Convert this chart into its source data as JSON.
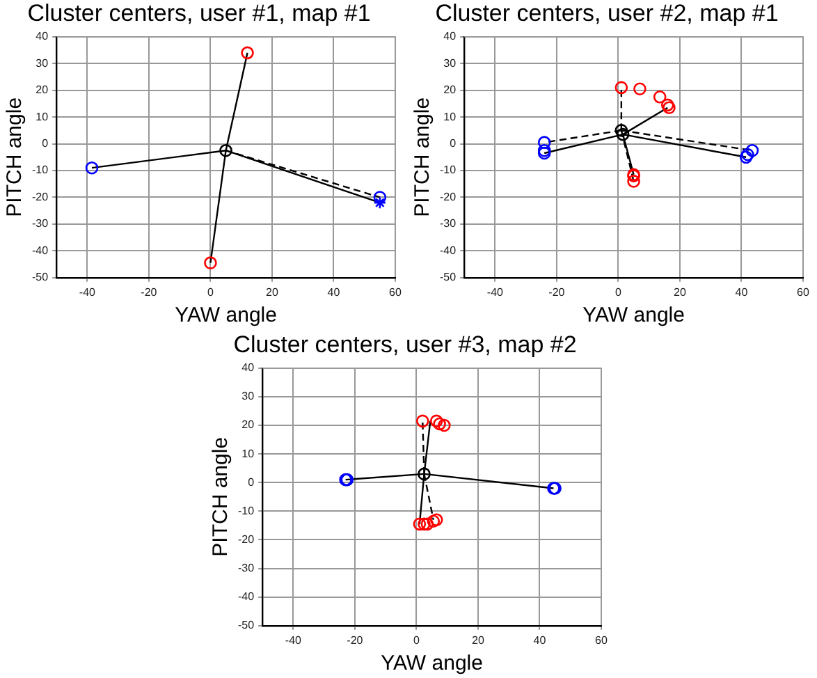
{
  "chart_data": [
    {
      "type": "scatter",
      "title": "Cluster centers, user #1, map #1",
      "xlabel": "YAW angle",
      "ylabel": "PITCH angle",
      "xlim": [
        -50,
        60
      ],
      "ylim": [
        -50,
        40
      ],
      "xticks": [
        -40,
        -20,
        0,
        20,
        40,
        60
      ],
      "yticks": [
        -50,
        -40,
        -30,
        -20,
        -10,
        0,
        10,
        20,
        30,
        40
      ],
      "grid": true,
      "legend": false,
      "series": [
        {
          "type": "scatter",
          "marker": "circle",
          "color": "#ff0000",
          "x": [
            12,
            0
          ],
          "values": [
            34,
            -44.5
          ]
        },
        {
          "type": "scatter",
          "marker": "circle",
          "color": "#0000ff",
          "x": [
            -38.5,
            55
          ],
          "values": [
            -9,
            -20
          ]
        },
        {
          "type": "scatter",
          "marker": "cross",
          "color": "#0000ff",
          "x": [
            55
          ],
          "values": [
            -22
          ]
        },
        {
          "type": "scatter",
          "marker": "circle",
          "color": "#000000",
          "x": [
            5
          ],
          "values": [
            -2.5
          ]
        },
        {
          "type": "line",
          "marker": "none",
          "line_style": "solid",
          "color": "#000000",
          "x": [
            5,
            12,
            null,
            5,
            0,
            null,
            5,
            -38.5,
            null,
            5,
            55
          ],
          "values": [
            -2.5,
            34,
            null,
            -2.5,
            -44.5,
            null,
            -2.5,
            -9,
            null,
            -2.5,
            -22
          ]
        },
        {
          "type": "line",
          "marker": "none",
          "line_style": "dashed",
          "color": "#000000",
          "x": [
            5,
            55
          ],
          "values": [
            -2.5,
            -20
          ]
        }
      ]
    },
    {
      "type": "scatter",
      "title": "Cluster centers, user #2, map #1",
      "xlabel": "YAW angle",
      "ylabel": "PITCH angle",
      "xlim": [
        -50,
        60
      ],
      "ylim": [
        -50,
        40
      ],
      "xticks": [
        -40,
        -20,
        0,
        20,
        40,
        60
      ],
      "yticks": [
        -50,
        -40,
        -30,
        -20,
        -10,
        0,
        10,
        20,
        30,
        40
      ],
      "grid": true,
      "legend": false,
      "series": [
        {
          "type": "scatter",
          "marker": "circle",
          "color": "#ff0000",
          "x": [
            1,
            7,
            13.5,
            16,
            16.5,
            5,
            5,
            5
          ],
          "values": [
            21,
            20.5,
            17.5,
            14.5,
            13.5,
            -11.5,
            -12,
            -14
          ]
        },
        {
          "type": "scatter",
          "marker": "circle",
          "color": "#0000ff",
          "x": [
            -24,
            -24,
            -24,
            41.5,
            42,
            43.5
          ],
          "values": [
            0.5,
            -2.5,
            -3.5,
            -5,
            -4,
            -2.5
          ]
        },
        {
          "type": "scatter",
          "marker": "circle",
          "color": "#000000",
          "x": [
            1,
            1.5
          ],
          "values": [
            5,
            3.5
          ]
        },
        {
          "type": "line",
          "marker": "none",
          "line_style": "solid",
          "color": "#000000",
          "x": [
            1.5,
            16,
            null,
            1.5,
            -24,
            null,
            1.5,
            41.5,
            null,
            1.5,
            5
          ],
          "values": [
            3.5,
            13.5,
            null,
            3.5,
            -3.5,
            null,
            3.5,
            -5,
            null,
            3.5,
            -11.5
          ]
        },
        {
          "type": "line",
          "marker": "none",
          "line_style": "dashed",
          "color": "#000000",
          "x": [
            1,
            1,
            null,
            1,
            -24,
            null,
            1,
            43.5,
            null,
            1,
            5
          ],
          "values": [
            5,
            21,
            null,
            5,
            0.5,
            null,
            5,
            -2.5,
            null,
            5,
            -14
          ]
        }
      ]
    },
    {
      "type": "scatter",
      "title": "Cluster centers, user #3, map #2",
      "xlabel": "YAW angle",
      "ylabel": "PITCH angle",
      "xlim": [
        -50,
        60
      ],
      "ylim": [
        -50,
        40
      ],
      "xticks": [
        -40,
        -20,
        0,
        20,
        40,
        60
      ],
      "yticks": [
        -50,
        -40,
        -30,
        -20,
        -10,
        0,
        10,
        20,
        30,
        40
      ],
      "grid": true,
      "legend": false,
      "series": [
        {
          "type": "scatter",
          "marker": "circle",
          "color": "#ff0000",
          "x": [
            2,
            6.5,
            7.5,
            9,
            1,
            2.5,
            3.5,
            5.5,
            6.5
          ],
          "values": [
            21.5,
            21.5,
            20.5,
            20,
            -14.5,
            -14.5,
            -14.5,
            -13.5,
            -13
          ]
        },
        {
          "type": "scatter",
          "marker": "circle",
          "color": "#0000ff",
          "x": [
            -23,
            -22.5,
            44.5,
            45
          ],
          "values": [
            1,
            1,
            -2,
            -2
          ]
        },
        {
          "type": "scatter",
          "marker": "circle",
          "color": "#000000",
          "x": [
            2.5
          ],
          "values": [
            3
          ]
        },
        {
          "type": "line",
          "marker": "none",
          "line_style": "solid",
          "color": "#000000",
          "x": [
            2.5,
            -23,
            null,
            2.5,
            44.5,
            null,
            2.5,
            4.5,
            null,
            2.5,
            1
          ],
          "values": [
            3,
            1,
            null,
            3,
            -2,
            null,
            3,
            21.5,
            null,
            3,
            -14.5
          ]
        },
        {
          "type": "line",
          "marker": "none",
          "line_style": "dashed",
          "color": "#000000",
          "x": [
            2.5,
            2,
            null,
            2.5,
            5.5
          ],
          "values": [
            3,
            21.5,
            null,
            3,
            -13
          ]
        }
      ]
    }
  ]
}
